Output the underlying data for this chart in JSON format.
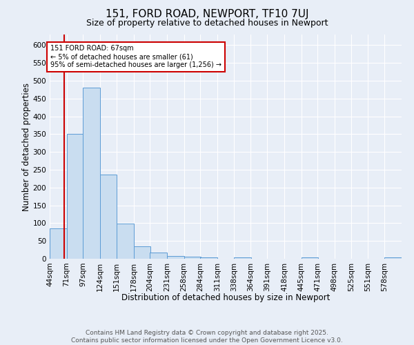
{
  "title": "151, FORD ROAD, NEWPORT, TF10 7UJ",
  "subtitle": "Size of property relative to detached houses in Newport",
  "xlabel": "Distribution of detached houses by size in Newport",
  "ylabel": "Number of detached properties",
  "bar_color": "#c9ddf0",
  "bar_edge_color": "#5b9bd5",
  "bin_labels": [
    "44sqm",
    "71sqm",
    "97sqm",
    "124sqm",
    "151sqm",
    "178sqm",
    "204sqm",
    "231sqm",
    "258sqm",
    "284sqm",
    "311sqm",
    "338sqm",
    "364sqm",
    "391sqm",
    "418sqm",
    "445sqm",
    "471sqm",
    "498sqm",
    "525sqm",
    "551sqm",
    "578sqm"
  ],
  "bin_starts": [
    44,
    71,
    97,
    124,
    151,
    178,
    204,
    231,
    258,
    284,
    311,
    338,
    364,
    391,
    418,
    445,
    471,
    498,
    525,
    551,
    578
  ],
  "bin_width": 27,
  "values": [
    85,
    350,
    480,
    237,
    98,
    35,
    17,
    7,
    5,
    4,
    0,
    4,
    0,
    0,
    0,
    4,
    0,
    0,
    0,
    0,
    4
  ],
  "ylim": [
    0,
    630
  ],
  "yticks": [
    0,
    50,
    100,
    150,
    200,
    250,
    300,
    350,
    400,
    450,
    500,
    550,
    600
  ],
  "property_size": 67,
  "red_line_color": "#cc0000",
  "annotation_text": "151 FORD ROAD: 67sqm\n← 5% of detached houses are smaller (61)\n95% of semi-detached houses are larger (1,256) →",
  "annotation_box_color": "#ffffff",
  "annotation_box_edge_color": "#cc0000",
  "footer_line1": "Contains HM Land Registry data © Crown copyright and database right 2025.",
  "footer_line2": "Contains public sector information licensed under the Open Government Licence v3.0.",
  "background_color": "#e8eef7",
  "plot_background_color": "#e8eef7",
  "grid_color": "#ffffff",
  "title_fontsize": 11,
  "subtitle_fontsize": 9,
  "axis_label_fontsize": 8.5,
  "tick_fontsize": 7.5,
  "footer_fontsize": 6.5,
  "annotation_fontsize": 7
}
